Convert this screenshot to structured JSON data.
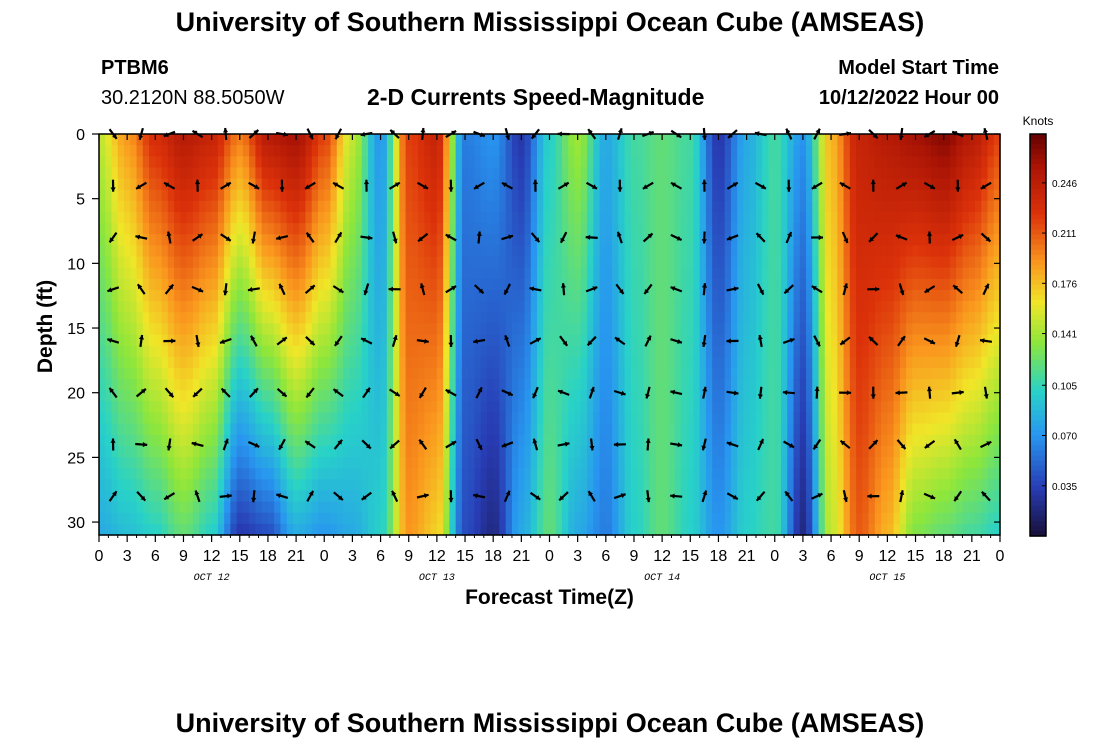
{
  "page": {
    "title_top": "University of Southern Mississippi Ocean Cube (AMSEAS)",
    "title_bottom": "University of Southern Mississippi Ocean Cube (AMSEAS)",
    "station_id": "PTBM6",
    "station_coords": "30.2120N  88.5050W",
    "plot_title": "2-D Currents Speed-Magnitude",
    "model_start_label": "Model Start Time",
    "model_start_value": "10/12/2022 Hour 00"
  },
  "chart_data": {
    "type": "heatmap",
    "title": "2-D Currents Speed-Magnitude",
    "xlabel": "Forecast Time(Z)",
    "ylabel": "Depth (ft)",
    "x_range": [
      0,
      96
    ],
    "y_range": [
      0,
      31
    ],
    "x_tick_values": [
      0,
      3,
      6,
      9,
      12,
      15,
      18,
      21,
      24,
      27,
      30,
      33,
      36,
      39,
      42,
      45,
      48,
      51,
      54,
      57,
      60,
      63,
      66,
      69,
      72,
      75,
      78,
      81,
      84,
      87,
      90,
      93,
      96
    ],
    "x_tick_labels": [
      "0",
      "3",
      "6",
      "9",
      "12",
      "15",
      "18",
      "21",
      "0",
      "3",
      "6",
      "9",
      "12",
      "15",
      "18",
      "21",
      "0",
      "3",
      "6",
      "9",
      "12",
      "15",
      "18",
      "21",
      "0",
      "3",
      "6",
      "9",
      "12",
      "15",
      "18",
      "21",
      "0"
    ],
    "y_tick_values": [
      0,
      5,
      10,
      15,
      20,
      25,
      30
    ],
    "y_tick_labels": [
      "0",
      "5",
      "10",
      "15",
      "20",
      "25",
      "30"
    ],
    "day_labels": [
      {
        "text": "OCT 12",
        "hour": 12
      },
      {
        "text": "OCT 13",
        "hour": 36
      },
      {
        "text": "OCT 14",
        "hour": 60
      },
      {
        "text": "OCT 15",
        "hour": 84
      }
    ],
    "colorbar": {
      "unit": "Knots",
      "min": 0.0,
      "max": 0.28,
      "tick_values": [
        0.246,
        0.211,
        0.176,
        0.141,
        0.105,
        0.07,
        0.035
      ],
      "tick_labels": [
        "0.246",
        "0.211",
        "0.176",
        "0.141",
        "0.105",
        "0.070",
        "0.035"
      ]
    },
    "speed_columns": [
      {
        "hour": 0,
        "top": 0.15,
        "bottom": 0.08
      },
      {
        "hour": 3,
        "top": 0.19,
        "bottom": 0.09
      },
      {
        "hour": 6,
        "top": 0.23,
        "bottom": 0.1
      },
      {
        "hour": 9,
        "top": 0.25,
        "bottom": 0.12
      },
      {
        "hour": 12,
        "top": 0.24,
        "bottom": 0.1
      },
      {
        "hour": 15,
        "top": 0.2,
        "bottom": 0.03
      },
      {
        "hour": 18,
        "top": 0.25,
        "bottom": 0.04
      },
      {
        "hour": 21,
        "top": 0.26,
        "bottom": 0.08
      },
      {
        "hour": 24,
        "top": 0.22,
        "bottom": 0.07
      },
      {
        "hour": 27,
        "top": 0.15,
        "bottom": 0.08
      },
      {
        "hour": 30,
        "top": 0.07,
        "bottom": 0.1
      },
      {
        "hour": 33,
        "top": 0.22,
        "bottom": 0.19
      },
      {
        "hour": 36,
        "top": 0.24,
        "bottom": 0.17
      },
      {
        "hour": 39,
        "top": 0.06,
        "bottom": 0.04
      },
      {
        "hour": 42,
        "top": 0.07,
        "bottom": 0.02
      },
      {
        "hour": 45,
        "top": 0.03,
        "bottom": 0.08
      },
      {
        "hour": 48,
        "top": 0.1,
        "bottom": 0.12
      },
      {
        "hour": 51,
        "top": 0.14,
        "bottom": 0.08
      },
      {
        "hour": 54,
        "top": 0.08,
        "bottom": 0.06
      },
      {
        "hour": 57,
        "top": 0.11,
        "bottom": 0.1
      },
      {
        "hour": 60,
        "top": 0.12,
        "bottom": 0.12
      },
      {
        "hour": 63,
        "top": 0.11,
        "bottom": 0.1
      },
      {
        "hour": 66,
        "top": 0.03,
        "bottom": 0.07
      },
      {
        "hour": 69,
        "top": 0.08,
        "bottom": 0.1
      },
      {
        "hour": 72,
        "top": 0.11,
        "bottom": 0.11
      },
      {
        "hour": 75,
        "top": 0.07,
        "bottom": 0.02
      },
      {
        "hour": 78,
        "top": 0.18,
        "bottom": 0.15
      },
      {
        "hour": 81,
        "top": 0.24,
        "bottom": 0.21
      },
      {
        "hour": 84,
        "top": 0.25,
        "bottom": 0.18
      },
      {
        "hour": 87,
        "top": 0.26,
        "bottom": 0.13
      },
      {
        "hour": 90,
        "top": 0.27,
        "bottom": 0.12
      },
      {
        "hour": 93,
        "top": 0.25,
        "bottom": 0.11
      },
      {
        "hour": 96,
        "top": 0.22,
        "bottom": 0.1
      }
    ],
    "vector_depths": [
      0,
      4,
      8,
      12,
      16,
      20,
      24,
      28
    ]
  }
}
